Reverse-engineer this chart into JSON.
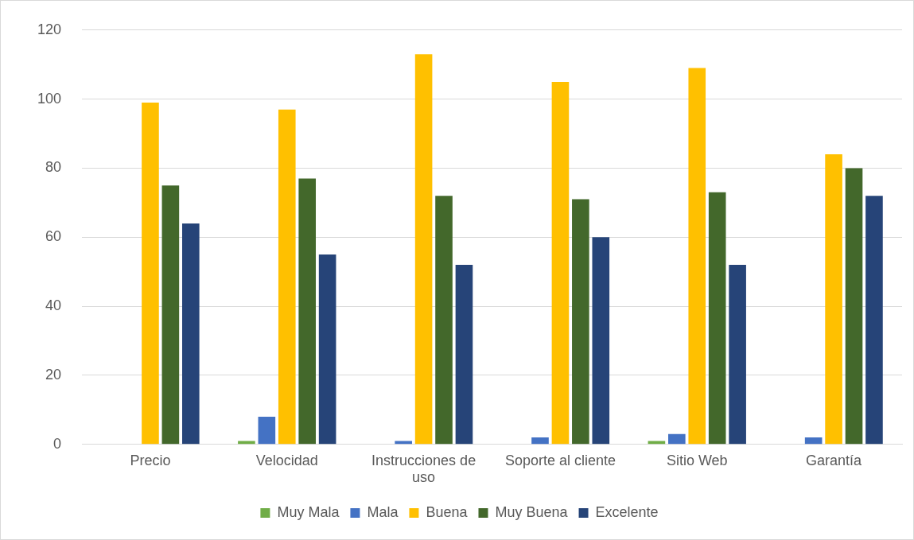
{
  "chart_data": {
    "type": "bar",
    "categories": [
      "Precio",
      "Velocidad",
      "Instrucciones de uso",
      "Soporte al cliente",
      "Sitio Web",
      "Garantía"
    ],
    "series": [
      {
        "name": "Muy Mala",
        "color": "#70ad47",
        "values": [
          0,
          1,
          0,
          0,
          1,
          0
        ]
      },
      {
        "name": "Mala",
        "color": "#4472c4",
        "values": [
          0,
          8,
          1,
          2,
          3,
          2
        ]
      },
      {
        "name": "Buena",
        "color": "#ffc000",
        "values": [
          99,
          97,
          113,
          105,
          109,
          84
        ]
      },
      {
        "name": "Muy Buena",
        "color": "#43682b",
        "values": [
          75,
          77,
          72,
          71,
          73,
          80
        ]
      },
      {
        "name": "Excelente",
        "color": "#264478",
        "values": [
          64,
          55,
          52,
          60,
          52,
          72
        ]
      }
    ],
    "ylim": [
      0,
      120
    ],
    "yticks": [
      0,
      20,
      40,
      60,
      80,
      100,
      120
    ],
    "grid": "y",
    "legend": "bottom"
  }
}
